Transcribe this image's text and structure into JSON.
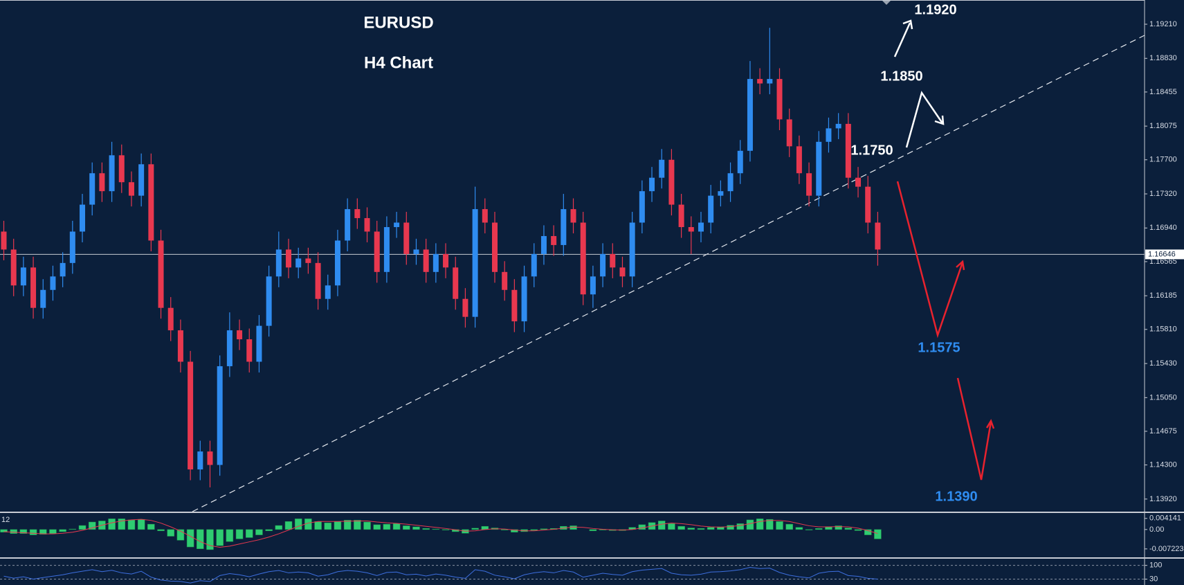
{
  "chart_data": {
    "type": "candlestick",
    "title": "EURUSD",
    "subtitle": "H4 Chart",
    "colors": {
      "up": "#2f8cf0",
      "down": "#e8384f"
    },
    "open": [
      1.169,
      1.167,
      1.163,
      1.165,
      1.1605,
      1.1625,
      1.164,
      1.1655,
      1.169,
      1.172,
      1.1755,
      1.1735,
      1.1775,
      1.1745,
      1.173,
      1.1765,
      1.168,
      1.1605,
      1.158,
      1.1545,
      1.1425,
      1.1445,
      1.143,
      1.154,
      1.158,
      1.157,
      1.1545,
      1.1585,
      1.164,
      1.167,
      1.165,
      1.166,
      1.1655,
      1.1615,
      1.163,
      1.168,
      1.1715,
      1.1705,
      1.169,
      1.1645,
      1.1695,
      1.17,
      1.1665,
      1.167,
      1.1645,
      1.1665,
      1.165,
      1.1615,
      1.1595,
      1.1715,
      1.17,
      1.1645,
      1.1625,
      1.159,
      1.164,
      1.1665,
      1.1685,
      1.1675,
      1.1715,
      1.17,
      1.162,
      1.164,
      1.1665,
      1.165,
      1.164,
      1.17,
      1.1735,
      1.175,
      1.177,
      1.172,
      1.1695,
      1.169,
      1.17,
      1.173,
      1.1735,
      1.1755,
      1.178,
      1.186,
      1.1855,
      1.186,
      1.1815,
      1.1785,
      1.1755,
      1.173,
      1.179,
      1.1805,
      1.181,
      1.175,
      1.174,
      1.17
    ],
    "high": [
      1.1702,
      1.1682,
      1.1662,
      1.1662,
      1.1637,
      1.1652,
      1.1667,
      1.1702,
      1.1732,
      1.1767,
      1.1767,
      1.179,
      1.1787,
      1.1757,
      1.1777,
      1.1777,
      1.1692,
      1.1617,
      1.1592,
      1.1557,
      1.1457,
      1.1457,
      1.1552,
      1.16,
      1.1592,
      1.1582,
      1.1597,
      1.1652,
      1.169,
      1.1682,
      1.1672,
      1.1672,
      1.1667,
      1.1642,
      1.1692,
      1.1727,
      1.1727,
      1.1717,
      1.1702,
      1.1707,
      1.1712,
      1.1712,
      1.1682,
      1.1682,
      1.1677,
      1.1677,
      1.1662,
      1.1627,
      1.174,
      1.1727,
      1.1712,
      1.1657,
      1.1637,
      1.1652,
      1.1677,
      1.1697,
      1.1697,
      1.1732,
      1.1727,
      1.1712,
      1.1652,
      1.1677,
      1.1677,
      1.1662,
      1.1712,
      1.1747,
      1.1762,
      1.1782,
      1.1782,
      1.1732,
      1.1707,
      1.1712,
      1.1742,
      1.1747,
      1.1767,
      1.1792,
      1.188,
      1.1872,
      1.1917,
      1.1872,
      1.1827,
      1.1797,
      1.1767,
      1.1802,
      1.1817,
      1.1822,
      1.1822,
      1.1762,
      1.1752,
      1.1712
    ],
    "low": [
      1.1658,
      1.1618,
      1.1618,
      1.1593,
      1.1593,
      1.1613,
      1.1628,
      1.1643,
      1.1678,
      1.1708,
      1.1723,
      1.1723,
      1.1733,
      1.1718,
      1.1718,
      1.1668,
      1.1593,
      1.1568,
      1.1533,
      1.1413,
      1.1413,
      1.1405,
      1.1418,
      1.1528,
      1.1558,
      1.1533,
      1.1533,
      1.1573,
      1.1628,
      1.1638,
      1.1638,
      1.1643,
      1.1603,
      1.1603,
      1.1618,
      1.1668,
      1.1693,
      1.1678,
      1.1633,
      1.1633,
      1.1683,
      1.1653,
      1.1653,
      1.1633,
      1.1633,
      1.1638,
      1.1603,
      1.1583,
      1.1583,
      1.1688,
      1.1633,
      1.1613,
      1.1578,
      1.1578,
      1.1628,
      1.1653,
      1.1663,
      1.1663,
      1.1688,
      1.1608,
      1.1605,
      1.1628,
      1.1638,
      1.1628,
      1.1628,
      1.1688,
      1.1723,
      1.1738,
      1.1708,
      1.1683,
      1.1665,
      1.1678,
      1.1688,
      1.1718,
      1.1723,
      1.1743,
      1.1768,
      1.1843,
      1.1843,
      1.1803,
      1.1773,
      1.1743,
      1.1718,
      1.1718,
      1.1778,
      1.1793,
      1.1738,
      1.1728,
      1.1688,
      1.1652
    ],
    "close": [
      1.167,
      1.163,
      1.165,
      1.1605,
      1.1625,
      1.164,
      1.1655,
      1.169,
      1.172,
      1.1755,
      1.1735,
      1.1775,
      1.1745,
      1.173,
      1.1765,
      1.168,
      1.1605,
      1.158,
      1.1545,
      1.1425,
      1.1445,
      1.143,
      1.154,
      1.158,
      1.157,
      1.1545,
      1.1585,
      1.164,
      1.167,
      1.165,
      1.166,
      1.1655,
      1.1615,
      1.163,
      1.168,
      1.1715,
      1.1705,
      1.169,
      1.1645,
      1.1695,
      1.17,
      1.1665,
      1.167,
      1.1645,
      1.1665,
      1.165,
      1.1615,
      1.1595,
      1.1715,
      1.17,
      1.1645,
      1.1625,
      1.159,
      1.164,
      1.1665,
      1.1685,
      1.1675,
      1.1715,
      1.17,
      1.162,
      1.164,
      1.1665,
      1.165,
      1.164,
      1.17,
      1.1735,
      1.175,
      1.177,
      1.172,
      1.1695,
      1.169,
      1.17,
      1.173,
      1.1735,
      1.1755,
      1.178,
      1.186,
      1.1855,
      1.186,
      1.1815,
      1.1785,
      1.1755,
      1.173,
      1.179,
      1.1805,
      1.181,
      1.175,
      1.174,
      1.17,
      1.167
    ],
    "ylim": [
      1.1378,
      1.1948
    ],
    "yticks": [
      {
        "value": 1.1921,
        "label": "1.19210"
      },
      {
        "value": 1.1883,
        "label": "1.18830"
      },
      1.18455,
      1.18075,
      {
        "value": 1.177,
        "label": "1.17700"
      },
      {
        "value": 1.1732,
        "label": "1.17320"
      },
      {
        "value": 1.1694,
        "label": "1.16940"
      },
      1.16565,
      1.16185,
      {
        "value": 1.1581,
        "label": "1.15810"
      },
      {
        "value": 1.1543,
        "label": "1.15430"
      },
      {
        "value": 1.1505,
        "label": "1.15050"
      },
      1.14675,
      {
        "value": 1.143,
        "label": "1.14300"
      },
      {
        "value": 1.1392,
        "label": "1.13920"
      }
    ],
    "current_price": 1.16646,
    "annotations": [
      "1.1920",
      "1.1850",
      "1.1750",
      "1.1575",
      "1.1390"
    ],
    "macd": {
      "label": "12",
      "color": "#2ecc71",
      "signal_color": "#e8384f",
      "histogram": [
        -0.001,
        -0.0015,
        -0.0015,
        -0.002,
        -0.0018,
        -0.0015,
        -0.0008,
        0.0002,
        0.0015,
        0.0028,
        0.0032,
        0.004,
        0.004,
        0.0036,
        0.0038,
        0.002,
        -0.0005,
        -0.0025,
        -0.004,
        -0.0065,
        -0.0072,
        -0.0075,
        -0.006,
        -0.0045,
        -0.0035,
        -0.003,
        -0.002,
        -0.0005,
        0.0015,
        0.003,
        0.004,
        0.004,
        0.003,
        0.0025,
        0.003,
        0.0035,
        0.0035,
        0.0028,
        0.0018,
        0.002,
        0.0022,
        0.0014,
        0.001,
        0.0004,
        0.0002,
        -0.0002,
        -0.0008,
        -0.0014,
        0.0005,
        0.0012,
        0.0006,
        -0.0002,
        -0.001,
        -0.0008,
        -0.0003,
        0.0003,
        0.0004,
        0.0012,
        0.0014,
        0.0,
        -0.0005,
        -0.0002,
        -0.0004,
        -0.0004,
        0.0008,
        0.0018,
        0.0026,
        0.0032,
        0.0022,
        0.0012,
        0.0006,
        0.0004,
        0.0008,
        0.001,
        0.0016,
        0.0022,
        0.0036,
        0.004,
        0.0038,
        0.003,
        0.002,
        0.0008,
        -0.0002,
        0.0004,
        0.001,
        0.0014,
        0.0006,
        -0.0004,
        -0.002,
        -0.0035
      ],
      "signal": [
        -0.0008,
        -0.001,
        -0.0012,
        -0.0014,
        -0.0016,
        -0.0016,
        -0.0014,
        -0.001,
        -0.0003,
        0.0006,
        0.0016,
        0.0025,
        0.0032,
        0.0036,
        0.0038,
        0.0034,
        0.0024,
        0.001,
        -0.0006,
        -0.0025,
        -0.0045,
        -0.006,
        -0.0066,
        -0.0062,
        -0.0054,
        -0.0046,
        -0.0038,
        -0.0028,
        -0.0016,
        -0.0002,
        0.0012,
        0.0024,
        0.003,
        0.003,
        0.003,
        0.0031,
        0.0032,
        0.0032,
        0.0028,
        0.0025,
        0.0023,
        0.002,
        0.0016,
        0.0012,
        0.0008,
        0.0004,
        -0.0001,
        -0.0006,
        -0.0005,
        0.0,
        0.0003,
        0.0002,
        -0.0002,
        -0.0005,
        -0.0005,
        -0.0002,
        0.0001,
        0.0005,
        0.0009,
        0.0008,
        0.0004,
        0.0001,
        -0.0001,
        -0.0002,
        0.0,
        0.0006,
        0.0013,
        0.002,
        0.0024,
        0.0022,
        0.0018,
        0.0013,
        0.001,
        0.0009,
        0.0011,
        0.0015,
        0.0022,
        0.003,
        0.0034,
        0.0034,
        0.003,
        0.0022,
        0.0014,
        0.001,
        0.001,
        0.0011,
        0.001,
        0.0005,
        -0.0004,
        -0.0015
      ],
      "ylim": [
        -0.0101,
        0.0059
      ],
      "yticks": [
        0.004141,
        {
          "value": 0,
          "label": "0.00"
        },
        -0.007223
      ]
    },
    "oscillator": {
      "color": "#3d6fe0",
      "values": [
        45,
        35,
        42,
        30,
        38,
        45,
        52,
        62,
        70,
        78,
        68,
        75,
        62,
        56,
        70,
        40,
        25,
        20,
        18,
        10,
        22,
        18,
        48,
        58,
        52,
        42,
        56,
        68,
        74,
        62,
        66,
        62,
        45,
        52,
        68,
        74,
        70,
        62,
        48,
        64,
        66,
        52,
        55,
        46,
        56,
        50,
        40,
        34,
        78,
        70,
        50,
        42,
        32,
        52,
        62,
        68,
        62,
        74,
        66,
        40,
        50,
        60,
        54,
        50,
        68,
        76,
        80,
        84,
        60,
        52,
        50,
        55,
        66,
        68,
        72,
        78,
        90,
        84,
        86,
        64,
        50,
        42,
        36,
        60,
        68,
        70,
        48,
        44,
        34,
        30
      ],
      "ylim": [
        0,
        127
      ],
      "yticks": [
        100,
        30
      ]
    }
  }
}
